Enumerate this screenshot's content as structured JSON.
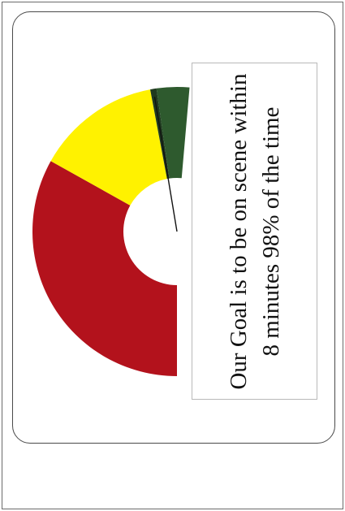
{
  "chart_data": {
    "type": "pie",
    "title": "",
    "slices": [
      {
        "label": "",
        "value": 57,
        "color": "#b3121c"
      },
      {
        "label": "",
        "value": 24,
        "color": "#fff200"
      },
      {
        "label": "",
        "value": 1.2,
        "color": "#1f3a1f"
      },
      {
        "label": "",
        "value": 6.3,
        "color": "#2e5a2e"
      }
    ],
    "half_donut": true,
    "needle_value": 6.9
  },
  "callout": {
    "text": "Our Goal is to be on scene within 8 minutes 98% of the time"
  }
}
